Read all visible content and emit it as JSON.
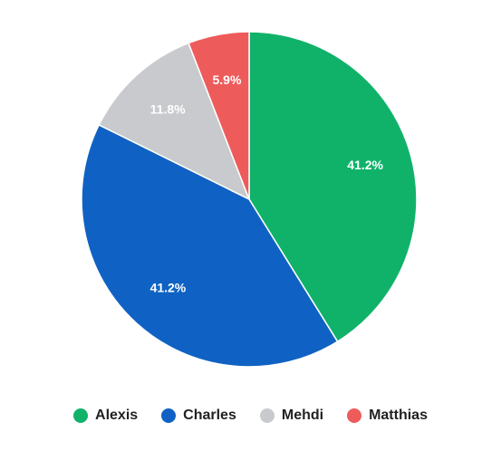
{
  "chart_data": {
    "type": "pie",
    "categories": [
      "Alexis",
      "Charles",
      "Mehdi",
      "Matthias"
    ],
    "values": [
      41.2,
      41.2,
      11.8,
      5.9
    ],
    "labels": [
      "41.2%",
      "41.2%",
      "11.8%",
      "5.9%"
    ],
    "colors": [
      "#10b26a",
      "#0f62c3",
      "#c9cacd",
      "#ee5b5b"
    ],
    "start_angle": "12 o'clock",
    "direction": "clockwise",
    "legend_position": "bottom-center"
  }
}
